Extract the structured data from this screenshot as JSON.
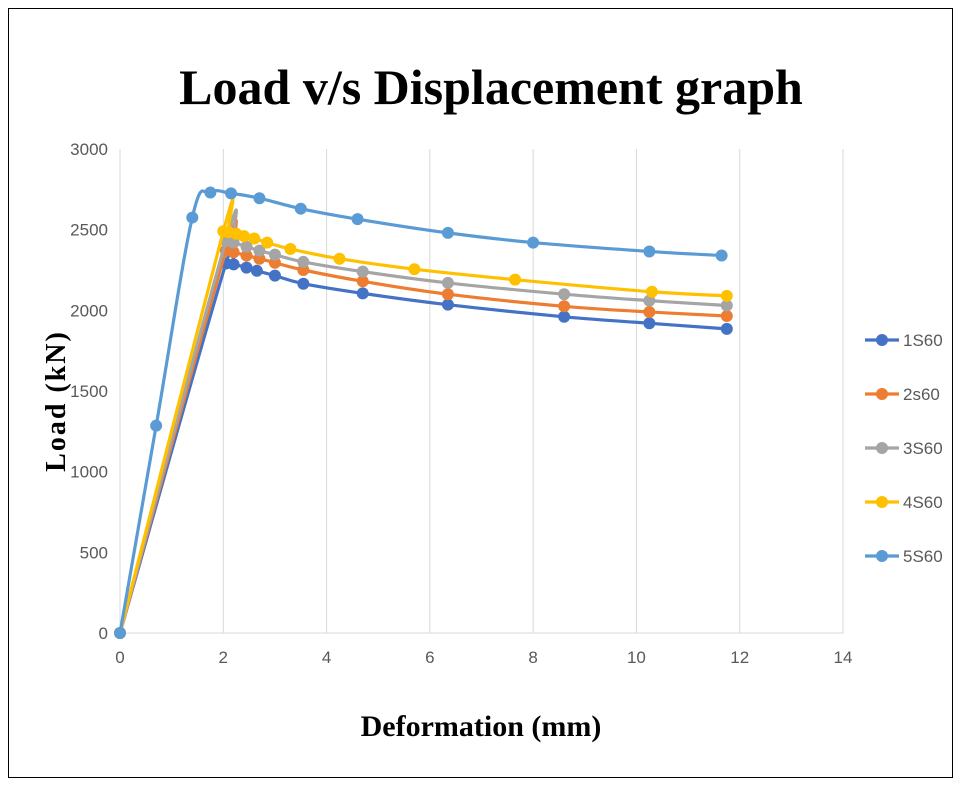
{
  "chart_data": {
    "type": "scatter",
    "title": "Load v/s Displacement graph",
    "xlabel": "Deformation (mm)",
    "ylabel": "Load (kN)",
    "xlim": [
      0,
      14
    ],
    "ylim": [
      0,
      3000
    ],
    "x_ticks": [
      "0",
      "2",
      "4",
      "6",
      "8",
      "10",
      "12",
      "14"
    ],
    "y_ticks": [
      "0",
      "500",
      "1000",
      "1500",
      "2000",
      "2500",
      "3000"
    ],
    "grid": "vertical",
    "legend_position": "right",
    "series": [
      {
        "name": "1S60",
        "color": "#4472C4",
        "points": [
          [
            0,
            0
          ],
          [
            2.05,
            2290
          ],
          [
            2.2,
            2285
          ],
          [
            2.45,
            2265
          ],
          [
            2.65,
            2245
          ],
          [
            3.0,
            2215
          ],
          [
            3.55,
            2165
          ],
          [
            4.7,
            2105
          ],
          [
            6.35,
            2035
          ],
          [
            8.6,
            1960
          ],
          [
            10.25,
            1920
          ],
          [
            11.75,
            1885
          ]
        ]
      },
      {
        "name": "2s60",
        "color": "#ED7D31",
        "points": [
          [
            0,
            0
          ],
          [
            2.05,
            2370
          ],
          [
            2.2,
            2360
          ],
          [
            2.45,
            2340
          ],
          [
            2.7,
            2320
          ],
          [
            3.0,
            2295
          ],
          [
            3.55,
            2250
          ],
          [
            4.7,
            2180
          ],
          [
            6.35,
            2100
          ],
          [
            8.6,
            2025
          ],
          [
            10.25,
            1990
          ],
          [
            11.75,
            1965
          ]
        ]
      },
      {
        "name": "3S60",
        "color": "#A5A5A5",
        "points": [
          [
            0,
            0
          ],
          [
            2.05,
            2430
          ],
          [
            2.2,
            2420
          ],
          [
            2.45,
            2395
          ],
          [
            2.7,
            2370
          ],
          [
            3.0,
            2345
          ],
          [
            3.55,
            2300
          ],
          [
            4.7,
            2240
          ],
          [
            6.35,
            2170
          ],
          [
            8.6,
            2100
          ],
          [
            10.25,
            2060
          ],
          [
            11.75,
            2030
          ]
        ]
      },
      {
        "name": "4S60",
        "color": "#FFC000",
        "points": [
          [
            0,
            0
          ],
          [
            2.0,
            2490
          ],
          [
            2.1,
            2485
          ],
          [
            2.25,
            2475
          ],
          [
            2.4,
            2460
          ],
          [
            2.6,
            2445
          ],
          [
            2.85,
            2420
          ],
          [
            3.3,
            2380
          ],
          [
            4.25,
            2320
          ],
          [
            5.7,
            2255
          ],
          [
            7.65,
            2190
          ],
          [
            10.3,
            2115
          ],
          [
            11.75,
            2090
          ]
        ]
      },
      {
        "name": "5S60",
        "color": "#5B9BD5",
        "points": [
          [
            0,
            0
          ],
          [
            0.7,
            1285
          ],
          [
            1.4,
            2575
          ],
          [
            1.75,
            2730
          ],
          [
            2.15,
            2725
          ],
          [
            2.7,
            2695
          ],
          [
            3.5,
            2630
          ],
          [
            4.6,
            2565
          ],
          [
            6.35,
            2480
          ],
          [
            8.0,
            2420
          ],
          [
            10.25,
            2365
          ],
          [
            11.65,
            2340
          ]
        ]
      }
    ]
  }
}
